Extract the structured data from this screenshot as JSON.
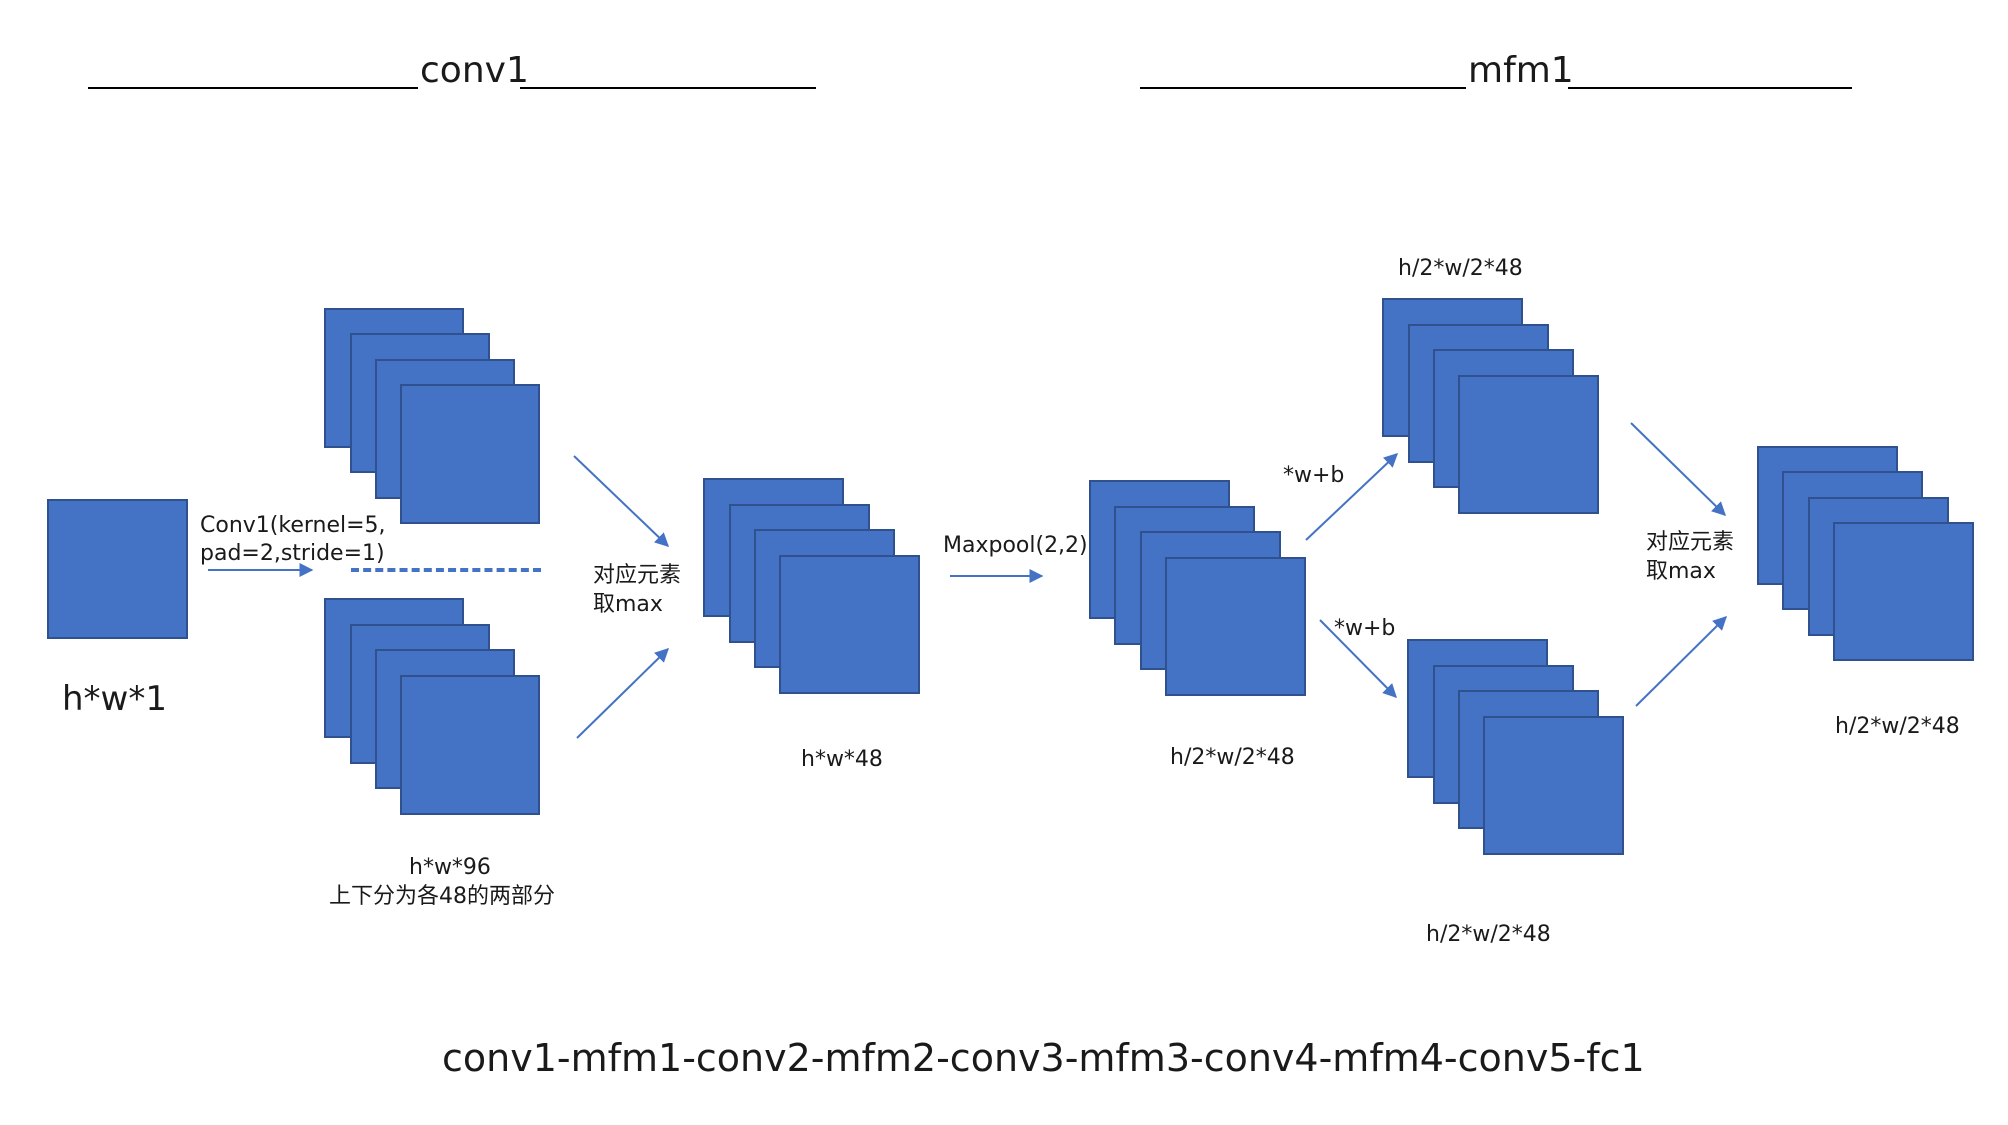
{
  "headers": {
    "conv1": "conv1",
    "mfm1": "mfm1"
  },
  "labels": {
    "input_size": "h*w*1",
    "conv_op_line1": "Conv1(kernel=5,",
    "conv_op_line2": "pad=2,stride=1)",
    "split_size": "h*w*96",
    "split_note": "上下分为各48的两部分",
    "elementwise_max_1_line1": "对应元素",
    "elementwise_max_1_line2": "取max",
    "mfm_out_size": "h*w*48",
    "pool_op": "Maxpool(2,2)",
    "pool_out_size": "h/2*w/2*48",
    "linear_top": "*w+b",
    "linear_bottom": "*w+b",
    "branch_top_size": "h/2*w/2*48",
    "branch_bottom_size": "h/2*w/2*48",
    "elementwise_max_2_line1": "对应元素",
    "elementwise_max_2_line2": "取max",
    "final_out_size": "h/2*w/2*48"
  },
  "footer": "conv1-mfm1-conv2-mfm2-conv3-mfm3-conv4-mfm4-conv5-fc1",
  "colors": {
    "box_fill": "#4472c4",
    "box_border": "#2f528f",
    "arrow": "#4472c4",
    "text": "#1a1a1a"
  }
}
